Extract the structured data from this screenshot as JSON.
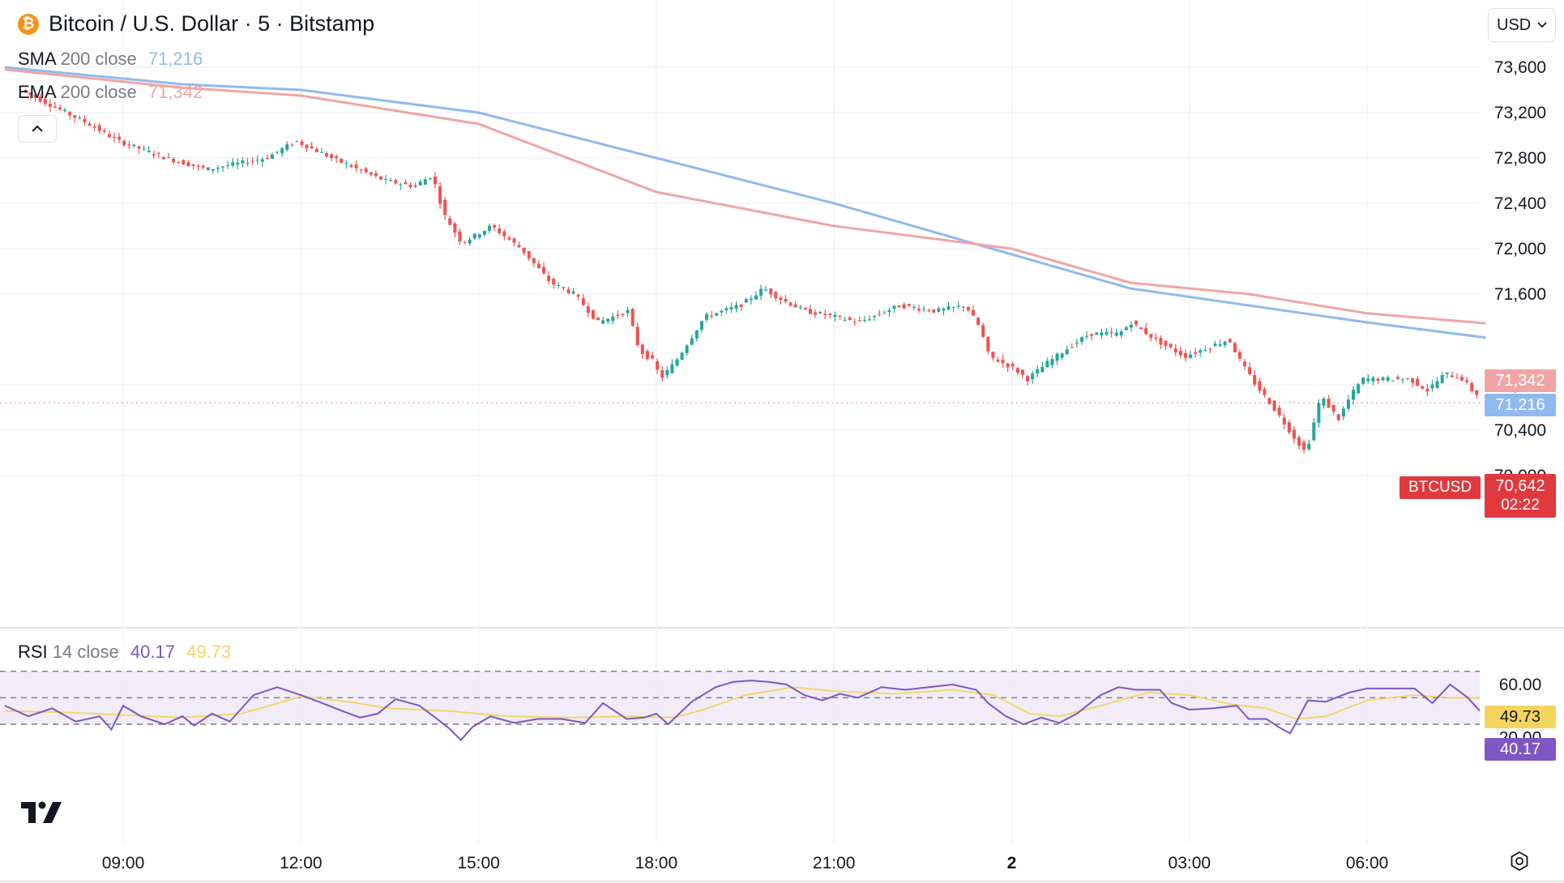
{
  "header": {
    "coin_symbol": "₿",
    "title": "Bitcoin / U.S. Dollar · 5 · Bitstamp",
    "currency": "USD"
  },
  "legend": {
    "sma": {
      "name": "SMA",
      "params": "200 close",
      "value": "71,216",
      "color": "#90b9f0"
    },
    "ema": {
      "name": "EMA",
      "params": "200 close",
      "value": "71,342",
      "color": "#f0a5a5"
    },
    "rsi": {
      "name": "RSI",
      "params": "14 close",
      "value": "40.17",
      "ma_value": "49.73",
      "color": "#7e57c2",
      "ma_color": "#f5d45e"
    }
  },
  "price_tags": {
    "ema": "71,342",
    "sma": "71,216",
    "last": "70,642",
    "countdown": "02:22",
    "symbol": "BTCUSD",
    "rsi_ma": "49.73",
    "rsi": "40.17"
  },
  "icons": {
    "collapse": "chevron-up-icon",
    "tv_logo": "tradingview-logo",
    "settings": "settings-icon",
    "currency_dropdown": "chevron-down-icon"
  },
  "colors": {
    "up": "#26a69a",
    "down": "#ef5350",
    "last_price": "#e0393e",
    "grid": "#f0f3fa",
    "rsi_band": "#ede7f6"
  },
  "chart_data": [
    {
      "type": "candlestick",
      "title": "Bitcoin / U.S. Dollar · 5 · Bitstamp",
      "x_tick_labels": [
        "09:00",
        "12:00",
        "15:00",
        "18:00",
        "21:00",
        "2",
        "03:00",
        "06:00"
      ],
      "y_ticks": [
        "73,600",
        "73,200",
        "72,800",
        "72,400",
        "72,000",
        "71,600",
        "70,800",
        "70,400",
        "70,000"
      ],
      "ylim": [
        69830,
        73830
      ],
      "series": [
        {
          "name": "BTCUSD",
          "ohlc_path": [
            [
              7.35,
              73400
            ],
            [
              8.5,
              73100
            ],
            [
              9.0,
              72950
            ],
            [
              9.8,
              72800
            ],
            [
              10.5,
              72700
            ],
            [
              11.5,
              72800
            ],
            [
              12.0,
              72950
            ],
            [
              12.6,
              72800
            ],
            [
              13.5,
              72600
            ],
            [
              14.0,
              72550
            ],
            [
              14.3,
              72650
            ],
            [
              14.5,
              72300
            ],
            [
              14.8,
              72050
            ],
            [
              15.3,
              72200
            ],
            [
              15.8,
              72000
            ],
            [
              16.3,
              71700
            ],
            [
              16.7,
              71600
            ],
            [
              17.1,
              71350
            ],
            [
              17.6,
              71450
            ],
            [
              17.8,
              71100
            ],
            [
              18.05,
              71000
            ],
            [
              18.15,
              70850
            ],
            [
              18.4,
              71000
            ],
            [
              18.9,
              71400
            ],
            [
              19.5,
              71500
            ],
            [
              19.9,
              71650
            ],
            [
              20.2,
              71550
            ],
            [
              20.6,
              71450
            ],
            [
              21.1,
              71400
            ],
            [
              21.5,
              71350
            ],
            [
              22.2,
              71500
            ],
            [
              22.8,
              71450
            ],
            [
              23.3,
              71500
            ],
            [
              23.55,
              71300
            ],
            [
              23.7,
              71050
            ],
            [
              24.1,
              70950
            ],
            [
              24.35,
              70850
            ],
            [
              24.7,
              71000
            ],
            [
              25.1,
              71150
            ],
            [
              25.4,
              71250
            ],
            [
              25.9,
              71250
            ],
            [
              26.1,
              71350
            ],
            [
              26.5,
              71200
            ],
            [
              27.0,
              71050
            ],
            [
              27.5,
              71150
            ],
            [
              27.75,
              71200
            ],
            [
              27.95,
              71000
            ],
            [
              28.2,
              70800
            ],
            [
              28.5,
              70600
            ],
            [
              28.9,
              70300
            ],
            [
              29.05,
              70200
            ],
            [
              29.3,
              70700
            ],
            [
              29.6,
              70500
            ],
            [
              29.8,
              70700
            ],
            [
              30.0,
              70850
            ],
            [
              30.4,
              70850
            ],
            [
              30.8,
              70850
            ],
            [
              31.1,
              70750
            ],
            [
              31.4,
              70900
            ],
            [
              31.7,
              70850
            ],
            [
              31.9,
              70720
            ]
          ]
        },
        {
          "name": "SMA 200 close",
          "points": [
            [
              7.0,
              73600
            ],
            [
              10.0,
              73450
            ],
            [
              12.0,
              73400
            ],
            [
              15.0,
              73200
            ],
            [
              18.0,
              72800
            ],
            [
              21.0,
              72400
            ],
            [
              24.0,
              71950
            ],
            [
              26.0,
              71650
            ],
            [
              28.0,
              71500
            ],
            [
              30.0,
              71350
            ],
            [
              32.0,
              71216
            ]
          ]
        },
        {
          "name": "EMA 200 close",
          "points": [
            [
              7.0,
              73580
            ],
            [
              10.0,
              73420
            ],
            [
              12.0,
              73350
            ],
            [
              15.0,
              73100
            ],
            [
              18.0,
              72500
            ],
            [
              21.0,
              72200
            ],
            [
              24.0,
              72000
            ],
            [
              26.0,
              71700
            ],
            [
              28.0,
              71600
            ],
            [
              30.0,
              71430
            ],
            [
              32.0,
              71342
            ]
          ]
        }
      ],
      "last_price": "70,642"
    },
    {
      "type": "line",
      "title": "RSI 14 close",
      "y_ticks": [
        "60.00",
        "20.00"
      ],
      "ylim": [
        13,
        75
      ],
      "bands": [
        70,
        50,
        30
      ],
      "series": [
        {
          "name": "RSI 14 close",
          "color": "#7e57c2",
          "points": [
            [
              7.0,
              44
            ],
            [
              7.4,
              36
            ],
            [
              7.8,
              42
            ],
            [
              8.2,
              32
            ],
            [
              8.6,
              36
            ],
            [
              8.8,
              26
            ],
            [
              9.0,
              44
            ],
            [
              9.3,
              36
            ],
            [
              9.7,
              30
            ],
            [
              10.0,
              36
            ],
            [
              10.2,
              29
            ],
            [
              10.5,
              38
            ],
            [
              10.8,
              32
            ],
            [
              11.2,
              52
            ],
            [
              11.6,
              58
            ],
            [
              12.0,
              52
            ],
            [
              12.3,
              47
            ],
            [
              12.7,
              40
            ],
            [
              13.0,
              35
            ],
            [
              13.3,
              38
            ],
            [
              13.6,
              49
            ],
            [
              14.0,
              44
            ],
            [
              14.3,
              34
            ],
            [
              14.5,
              27
            ],
            [
              14.7,
              18
            ],
            [
              14.9,
              28
            ],
            [
              15.2,
              36
            ],
            [
              15.6,
              31
            ],
            [
              16.0,
              34
            ],
            [
              16.4,
              34
            ],
            [
              16.8,
              31
            ],
            [
              17.1,
              46
            ],
            [
              17.5,
              34
            ],
            [
              17.8,
              35
            ],
            [
              18.0,
              38
            ],
            [
              18.2,
              30
            ],
            [
              18.6,
              47
            ],
            [
              19.0,
              58
            ],
            [
              19.3,
              62
            ],
            [
              19.6,
              63
            ],
            [
              19.9,
              62
            ],
            [
              20.2,
              60
            ],
            [
              20.5,
              52
            ],
            [
              20.8,
              48
            ],
            [
              21.1,
              53
            ],
            [
              21.4,
              50
            ],
            [
              21.8,
              58
            ],
            [
              22.2,
              56
            ],
            [
              22.6,
              58
            ],
            [
              23.0,
              60
            ],
            [
              23.4,
              56
            ],
            [
              23.6,
              46
            ],
            [
              23.9,
              36
            ],
            [
              24.2,
              30
            ],
            [
              24.5,
              35
            ],
            [
              24.8,
              31
            ],
            [
              25.1,
              38
            ],
            [
              25.5,
              52
            ],
            [
              25.8,
              58
            ],
            [
              26.1,
              56
            ],
            [
              26.5,
              56
            ],
            [
              26.7,
              46
            ],
            [
              27.0,
              41
            ],
            [
              27.4,
              42
            ],
            [
              27.8,
              44
            ],
            [
              28.0,
              34
            ],
            [
              28.3,
              34
            ],
            [
              28.5,
              28
            ],
            [
              28.7,
              23
            ],
            [
              29.0,
              48
            ],
            [
              29.3,
              47
            ],
            [
              29.7,
              54
            ],
            [
              30.0,
              57
            ],
            [
              30.4,
              57
            ],
            [
              30.8,
              57
            ],
            [
              31.1,
              46
            ],
            [
              31.4,
              60
            ],
            [
              31.7,
              50
            ],
            [
              31.9,
              40.17
            ]
          ]
        },
        {
          "name": "RSI MA",
          "color": "#f5d45e",
          "points": [
            [
              7.0,
              40
            ],
            [
              8.0,
              39
            ],
            [
              9.0,
              37
            ],
            [
              10.0,
              35
            ],
            [
              11.0,
              38
            ],
            [
              12.0,
              51
            ],
            [
              12.8,
              47
            ],
            [
              13.5,
              42
            ],
            [
              14.5,
              40
            ],
            [
              15.5,
              36
            ],
            [
              16.5,
              35
            ],
            [
              17.5,
              36
            ],
            [
              18.3,
              35
            ],
            [
              18.8,
              41
            ],
            [
              19.5,
              52
            ],
            [
              20.3,
              58
            ],
            [
              21.0,
              55
            ],
            [
              22.0,
              53
            ],
            [
              23.0,
              56
            ],
            [
              23.7,
              52
            ],
            [
              24.3,
              38
            ],
            [
              24.8,
              36
            ],
            [
              25.5,
              44
            ],
            [
              26.3,
              54
            ],
            [
              27.0,
              52
            ],
            [
              27.7,
              45
            ],
            [
              28.3,
              42
            ],
            [
              28.8,
              34
            ],
            [
              29.3,
              36
            ],
            [
              30.0,
              48
            ],
            [
              30.8,
              52
            ],
            [
              31.4,
              50
            ],
            [
              31.9,
              49.73
            ]
          ]
        }
      ]
    }
  ]
}
